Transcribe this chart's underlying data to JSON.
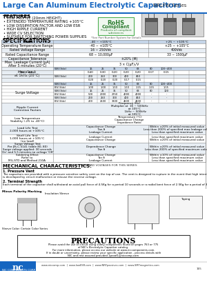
{
  "title": "Large Can Aluminum Electrolytic Capacitors",
  "series": "NRLFW Series",
  "features_title": "FEATURES",
  "features": [
    "LOW PROFILE (20mm HEIGHT)",
    "EXTENDED TEMPERATURE RATING +105°C",
    "LOW DISSIPATION FACTOR AND LOW ESR",
    "HIGH RIPPLE CURRENT",
    "WIDE CV SELECTION",
    "SUITABLE FOR SWITCHING POWER SUPPLIES"
  ],
  "rohs_note": "*See Part Number System for Details",
  "specs_title": "SPECIFICATIONS",
  "mech_title": "MECHANICAL CHARACTERISTICS:",
  "mech_note": "NON-STANDARD VOLTAGES FOR THIS SERIES",
  "precautions_title": "PRECAUTIONS",
  "precautions_text": [
    "Please avoid the use of circuit using safety components found on pages 763 or 775",
    "of NIC's Electrolytic Capacitor catalog.",
    "For more information, please access our website at www.niccomponents.com.",
    "If in doubt or uncertainty, please review your specific application - process details with",
    "NIC and rest assured provided 1proof1@niccomp.com"
  ],
  "footer_text": "NIC COMPONENTS CORP.     www.niccomp.com  |  www.lowESR.com  |  www.NRFpassives.com  |  www.SMTmagnetics.com",
  "bg_color": "#ffffff",
  "title_color": "#1565c0",
  "black": "#000000",
  "gray_line": "#888888",
  "table_header_bg": "#c5d5e8",
  "table_alt_bg": "#e8eef4",
  "table_white_bg": "#ffffff",
  "mech_text1": "1. Pressure Vent",
  "mech_text2a": "The capacitors are provided with a pressure sensitive safety vent on the top of can. The vent is designed to rupture in the event that high internal gas pressure",
  "mech_text2b": "is developed by circuit malfunction or misuse the reverse voltage.",
  "mech_text3": "2. Terminal Strength",
  "mech_text4": "Each terminal of the capacitor shall withstand an axial pull force of 4.5Kg for a period 10 seconds or a radial bent force of 2.5Kg for a period of 30 seconds."
}
